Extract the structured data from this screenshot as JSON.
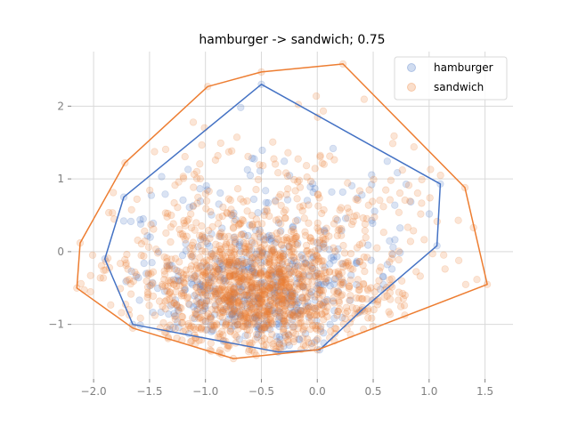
{
  "chart_data": {
    "type": "scatter",
    "title": "hamburger -> sandwich; 0.75",
    "xlabel": "",
    "ylabel": "",
    "xlim": [
      -2.2,
      1.75
    ],
    "ylim": [
      -1.75,
      2.75
    ],
    "xticks": [
      -2.0,
      -1.5,
      -1.0,
      -0.5,
      0.0,
      0.5,
      1.0,
      1.5
    ],
    "xtick_labels": [
      "−2.0",
      "−1.5",
      "−1.0",
      "−0.5",
      "0.0",
      "0.5",
      "1.0",
      "1.5"
    ],
    "yticks": [
      -1,
      0,
      1,
      2
    ],
    "ytick_labels": [
      "−1",
      "0",
      "1",
      "2"
    ],
    "grid": true,
    "legend_position": "top-right",
    "series": [
      {
        "name": "hamburger",
        "color": "#4472c4",
        "marker": "circle",
        "alpha": 0.2,
        "count_estimate": 500,
        "hull": [
          [
            -0.5,
            2.3
          ],
          [
            1.1,
            0.93
          ],
          [
            1.07,
            0.08
          ],
          [
            0.4,
            -0.8
          ],
          [
            0.02,
            -1.35
          ],
          [
            -0.35,
            -1.38
          ],
          [
            -1.65,
            -1.0
          ],
          [
            -1.9,
            -0.1
          ],
          [
            -1.73,
            0.75
          ]
        ]
      },
      {
        "name": "sandwich",
        "color": "#ed7d31",
        "marker": "circle",
        "alpha": 0.2,
        "count_estimate": 1500,
        "hull": [
          [
            -0.5,
            2.47
          ],
          [
            0.23,
            2.58
          ],
          [
            1.32,
            0.88
          ],
          [
            1.52,
            -0.45
          ],
          [
            0.0,
            -1.35
          ],
          [
            -0.75,
            -1.47
          ],
          [
            -1.65,
            -1.05
          ],
          [
            -2.15,
            -0.5
          ],
          [
            -2.12,
            0.12
          ],
          [
            -1.72,
            1.22
          ],
          [
            -0.98,
            2.27
          ]
        ]
      }
    ]
  }
}
